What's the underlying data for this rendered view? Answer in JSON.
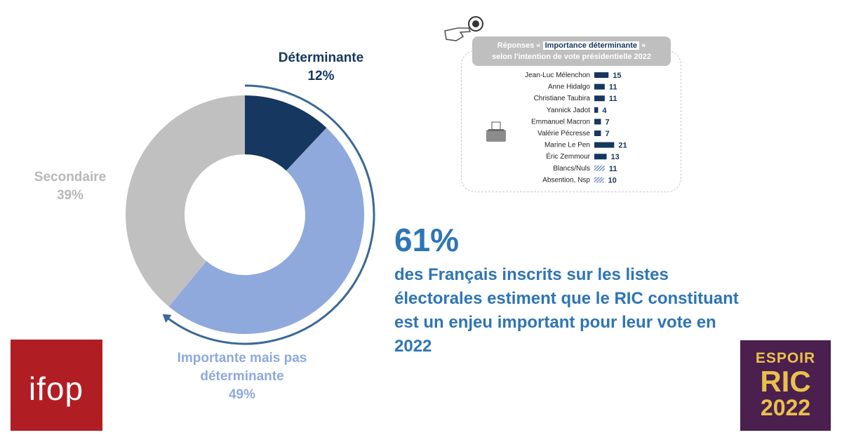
{
  "chart_data": [
    {
      "type": "pie",
      "categories": [
        "Déterminante",
        "Importante mais pas déterminante",
        "Secondaire"
      ],
      "values": [
        12,
        49,
        39
      ],
      "value_labels": [
        "12%",
        "49%",
        "39%"
      ],
      "label_lines": {
        "determinante": [
          "Déterminante",
          "12%"
        ],
        "importante": [
          "Importante mais pas",
          "déterminante",
          "49%"
        ],
        "secondaire": [
          "Secondaire",
          "39%"
        ]
      },
      "colors": [
        "#16375f",
        "#8fa9dd",
        "#c0c0c0"
      ],
      "label_colors": [
        "#16375f",
        "#8fa9dd",
        "#b8b8b8"
      ],
      "annotation_arc_color": "#3a6896"
    },
    {
      "type": "bar",
      "title_prefix": "Réponses «",
      "title_highlight": "Importance déterminante",
      "title_suffix": "»",
      "title_line2": "selon l'intention de vote présidentielle 2022",
      "categories": [
        "Jean-Luc Mélenchon",
        "Anne Hidalgo",
        "Christiane Taubira",
        "Yannick Jadot",
        "Emmanuel Macron",
        "Valérie Pécresse",
        "Marine Le Pen",
        "Éric Zemmour",
        "Blancs/Nuls",
        "Absention, Nsp"
      ],
      "values": [
        15,
        11,
        11,
        4,
        7,
        7,
        21,
        13,
        11,
        10
      ],
      "hatched": [
        false,
        false,
        false,
        false,
        false,
        false,
        false,
        false,
        true,
        true
      ],
      "colors": {
        "bar": "#16375f",
        "hatch": "#7f9bc8",
        "label": "#16375f"
      }
    }
  ],
  "headline": {
    "value": "61%",
    "text": "des Français inscrits sur les listes électorales estiment que le RIC constituant est un enjeu important pour leur vote en 2022",
    "color": "#2e75b6"
  },
  "logos": {
    "ifop": "ifop",
    "espoir": [
      "ESPOIR",
      "RIC",
      "2022"
    ]
  },
  "icons": [
    "hand-pointer-icon",
    "ballot-box-icon"
  ]
}
